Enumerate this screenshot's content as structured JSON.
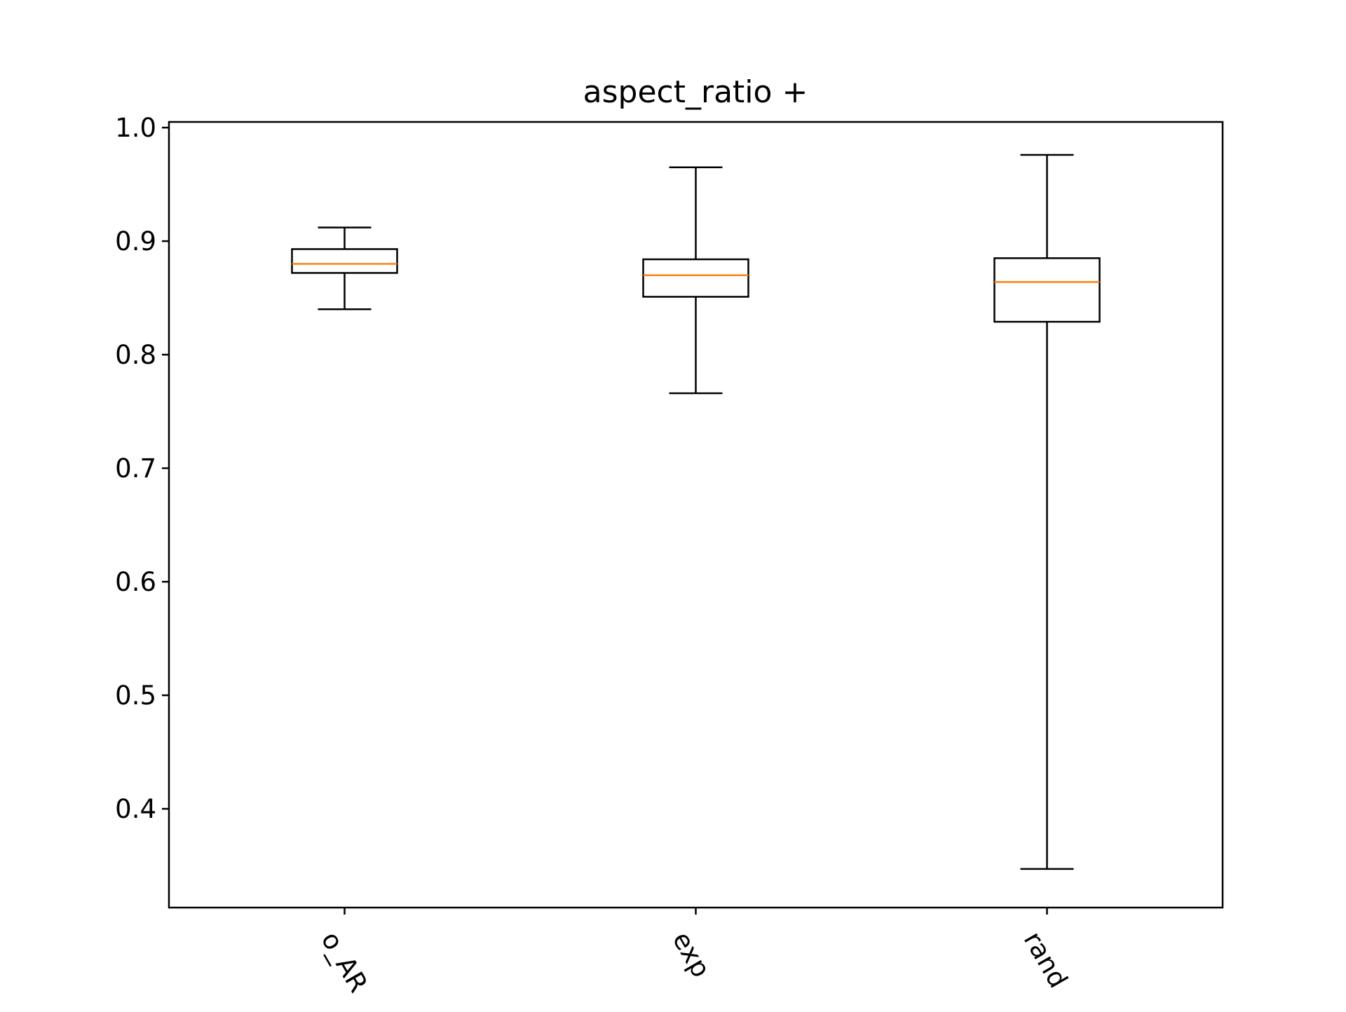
{
  "chart_data": {
    "type": "box",
    "title": "aspect_ratio +",
    "xlabel": "",
    "ylabel": "",
    "ylim": [
      0.313,
      1.005
    ],
    "yticks": [
      0.4,
      0.5,
      0.6,
      0.7,
      0.8,
      0.9,
      1.0
    ],
    "ytick_labels": [
      "0.4",
      "0.5",
      "0.6",
      "0.7",
      "0.8",
      "0.9",
      "1.0"
    ],
    "categories": [
      "o_AR",
      "exp",
      "rand"
    ],
    "boxes": [
      {
        "category": "o_AR",
        "whisker_low": 0.84,
        "q1": 0.872,
        "median": 0.88,
        "q3": 0.893,
        "whisker_high": 0.912
      },
      {
        "category": "exp",
        "whisker_low": 0.766,
        "q1": 0.851,
        "median": 0.87,
        "q3": 0.884,
        "whisker_high": 0.965
      },
      {
        "category": "rand",
        "whisker_low": 0.347,
        "q1": 0.829,
        "median": 0.864,
        "q3": 0.885,
        "whisker_high": 0.976
      }
    ],
    "grid": false,
    "colors": {
      "box": "#000000",
      "median": "#ff7f0e",
      "axes": "#000000"
    }
  }
}
